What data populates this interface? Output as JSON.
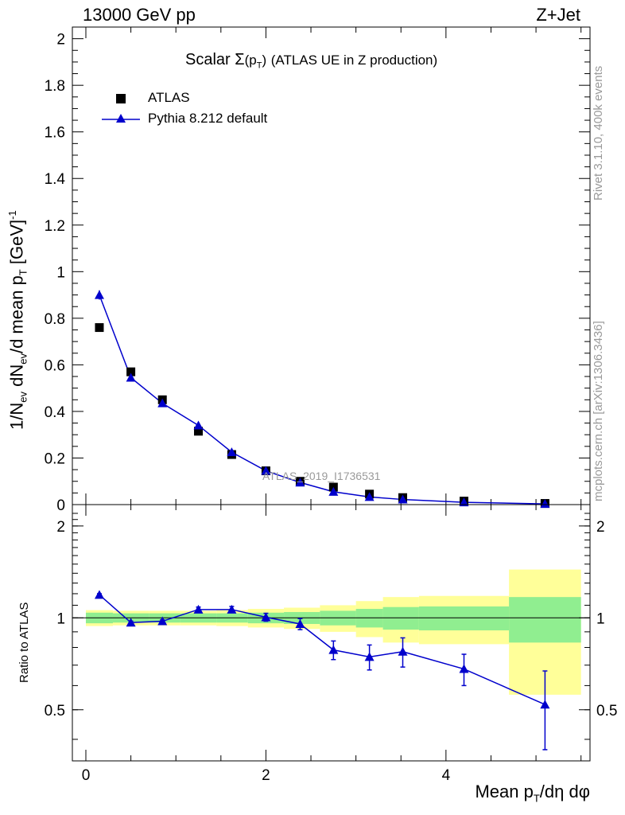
{
  "header": {
    "energy_label": "13000 GeV pp",
    "process_label": "Z+Jet",
    "plot_title_prefix": "Scalar",
    "plot_title_suffix": "(ATLAS UE in Z production)"
  },
  "side_labels": {
    "rivet": "Rivet 3.1.10,  400k events",
    "mcplots": "mcplots.cern.ch [arXiv:1306.3436]"
  },
  "watermark": "ATLAS_2019_I1736531",
  "legend": {
    "data_label": "ATLAS",
    "mc_label": "Pythia 8.212 default"
  },
  "axes": {
    "x_title": "Mean pT/dη dφ",
    "y_title_main": "1/Nev dNev/d mean pT [GeV]-1",
    "y_title_ratio": "Ratio to ATLAS"
  },
  "colors": {
    "mc": "#0000cc",
    "data": "#000000",
    "band_inner": "#90ee90",
    "band_outer": "#ffff99"
  },
  "chart_data": {
    "type": "scatter",
    "x": [
      0.15,
      0.5,
      0.85,
      1.25,
      1.62,
      2.0,
      2.38,
      2.75,
      3.15,
      3.52,
      4.2,
      5.1
    ],
    "x_edges": [
      0.0,
      0.3,
      0.7,
      1.05,
      1.45,
      1.8,
      2.2,
      2.6,
      3.0,
      3.3,
      3.7,
      4.7,
      5.5
    ],
    "xlim": [
      -0.15,
      5.6
    ],
    "x_ticks": [
      0,
      2,
      4
    ],
    "main": {
      "ylim": [
        0,
        2.05
      ],
      "y_ticks": [
        0,
        0.2,
        0.4,
        0.6,
        0.8,
        1,
        1.2,
        1.4,
        1.6,
        1.8,
        2
      ],
      "y_tick_labels": [
        "0",
        "0.2",
        "0.4",
        "0.6",
        "0.8",
        "1",
        "1.2",
        "1.4",
        "1.6",
        "1.8",
        "2"
      ],
      "series": [
        {
          "name": "ATLAS",
          "marker": "square",
          "values": [
            0.76,
            0.57,
            0.45,
            0.315,
            0.215,
            0.145,
            0.1,
            0.075,
            0.045,
            0.03,
            0.015,
            0.005
          ]
        },
        {
          "name": "Pythia 8.212 default",
          "marker": "triangle",
          "values": [
            0.9,
            0.545,
            0.435,
            0.34,
            0.225,
            0.145,
            0.095,
            0.055,
            0.033,
            0.022,
            0.01,
            0.003
          ],
          "errors": [
            0.02,
            0.01,
            0.008,
            0.006,
            0.005,
            0.004,
            0.003,
            0.002,
            0.002,
            0.0015,
            0.001,
            0.001
          ]
        }
      ]
    },
    "ratio": {
      "ylim": [
        0.34,
        2.35
      ],
      "y_ticks": [
        0.5,
        1,
        2
      ],
      "y_tick_labels": [
        "0.5",
        "1",
        "2"
      ],
      "values": [
        1.19,
        0.965,
        0.975,
        1.065,
        1.065,
        1.005,
        0.955,
        0.785,
        0.745,
        0.775,
        0.68,
        0.52
      ],
      "errors": [
        0.01,
        0.01,
        0.01,
        0.02,
        0.025,
        0.03,
        0.04,
        0.055,
        0.07,
        0.085,
        0.08,
        0.15
      ],
      "band_inner": [
        0.04,
        0.035,
        0.035,
        0.035,
        0.035,
        0.04,
        0.045,
        0.055,
        0.07,
        0.085,
        0.09,
        0.17
      ],
      "band_outer": [
        0.06,
        0.055,
        0.055,
        0.055,
        0.06,
        0.07,
        0.08,
        0.1,
        0.135,
        0.17,
        0.18,
        0.44
      ]
    }
  }
}
